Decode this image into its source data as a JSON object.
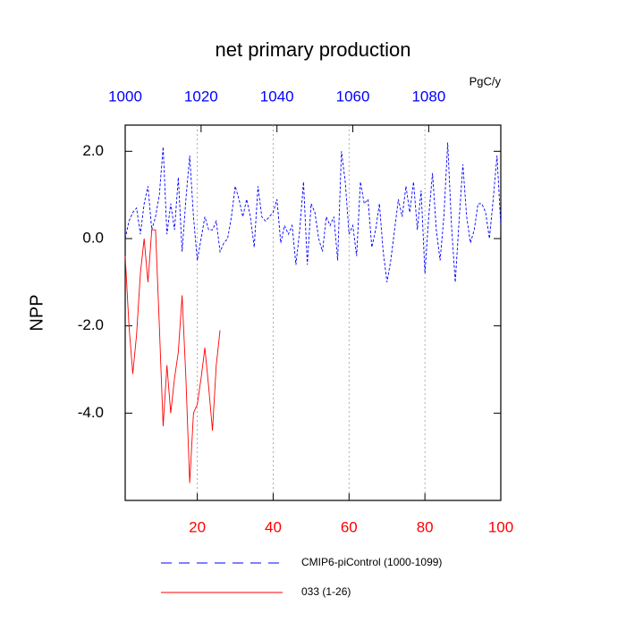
{
  "chart_data": {
    "type": "line",
    "title": "net primary production",
    "units": "PgC/y",
    "y_label": "NPP",
    "xlim": [
      1,
      100
    ],
    "xticks": [
      20,
      40,
      60,
      80,
      100
    ],
    "xticks_color": "#ff0000",
    "x2lim": [
      1000,
      1099
    ],
    "x2ticks": [
      1000,
      1020,
      1040,
      1060,
      1080
    ],
    "x2ticks_color": "#0000ff",
    "ylim": [
      -6,
      2.6
    ],
    "yticks": [
      {
        "value": 2,
        "label": "2.0"
      },
      {
        "value": 0,
        "label": "0.0"
      },
      {
        "value": -2,
        "label": "-2.0"
      },
      {
        "value": -4,
        "label": "-4.0"
      }
    ],
    "grid": "x",
    "series": [
      {
        "name": "CMIP6-piControl (1000-1099)",
        "color": "#0000ff",
        "dash": true,
        "x": [
          1,
          2,
          3,
          4,
          5,
          6,
          7,
          8,
          9,
          10,
          11,
          12,
          13,
          14,
          15,
          16,
          17,
          18,
          19,
          20,
          21,
          22,
          23,
          24,
          25,
          26,
          27,
          28,
          29,
          30,
          31,
          32,
          33,
          34,
          35,
          36,
          37,
          38,
          39,
          40,
          41,
          42,
          43,
          44,
          45,
          46,
          47,
          48,
          49,
          50,
          51,
          52,
          53,
          54,
          55,
          56,
          57,
          58,
          59,
          60,
          61,
          62,
          63,
          64,
          65,
          66,
          67,
          68,
          69,
          70,
          71,
          72,
          73,
          74,
          75,
          76,
          77,
          78,
          79,
          80,
          81,
          82,
          83,
          84,
          85,
          86,
          87,
          88,
          89,
          90,
          91,
          92,
          93,
          94,
          95,
          96,
          97,
          98,
          99,
          100
        ],
        "values": [
          0.0,
          0.4,
          0.6,
          0.7,
          0.1,
          0.8,
          1.2,
          0.2,
          0.5,
          1.0,
          2.1,
          0.1,
          0.8,
          0.2,
          1.4,
          -0.3,
          0.9,
          1.9,
          0.5,
          -0.5,
          0.0,
          0.5,
          0.2,
          0.2,
          0.4,
          -0.3,
          -0.1,
          0.0,
          0.5,
          1.2,
          0.9,
          0.5,
          0.9,
          0.5,
          -0.2,
          1.2,
          0.5,
          0.4,
          0.5,
          0.6,
          0.9,
          -0.1,
          0.3,
          0.1,
          0.3,
          -0.6,
          0.2,
          1.3,
          -0.6,
          0.8,
          0.6,
          0.0,
          -0.3,
          0.5,
          0.3,
          0.5,
          -0.5,
          2.0,
          1.3,
          0.1,
          0.3,
          -0.4,
          1.3,
          0.8,
          0.9,
          -0.2,
          0.2,
          0.8,
          -0.3,
          -1.0,
          -0.5,
          0.2,
          0.9,
          0.5,
          1.2,
          0.6,
          1.3,
          0.2,
          1.1,
          -0.8,
          0.5,
          1.5,
          0.2,
          -0.5,
          0.5,
          2.2,
          0.3,
          -1.0,
          0.4,
          1.7,
          0.5,
          -0.1,
          0.2,
          0.8,
          0.8,
          0.6,
          0.0,
          0.9,
          1.9,
          0.3
        ]
      },
      {
        "name": "033 (1-26)",
        "color": "#ff0000",
        "dash": false,
        "x": [
          1,
          2,
          3,
          4,
          5,
          6,
          7,
          8,
          9,
          10,
          11,
          12,
          13,
          14,
          15,
          16,
          17,
          18,
          19,
          20,
          21,
          22,
          23,
          24,
          25,
          26
        ],
        "values": [
          -0.4,
          -2.0,
          -3.1,
          -2.2,
          -0.8,
          0.0,
          -1.0,
          0.2,
          0.2,
          -2.0,
          -4.3,
          -2.9,
          -4.0,
          -3.2,
          -2.6,
          -1.3,
          -3.2,
          -5.6,
          -4.0,
          -3.8,
          -3.2,
          -2.5,
          -3.4,
          -4.4,
          -2.9,
          -2.1
        ]
      }
    ]
  }
}
